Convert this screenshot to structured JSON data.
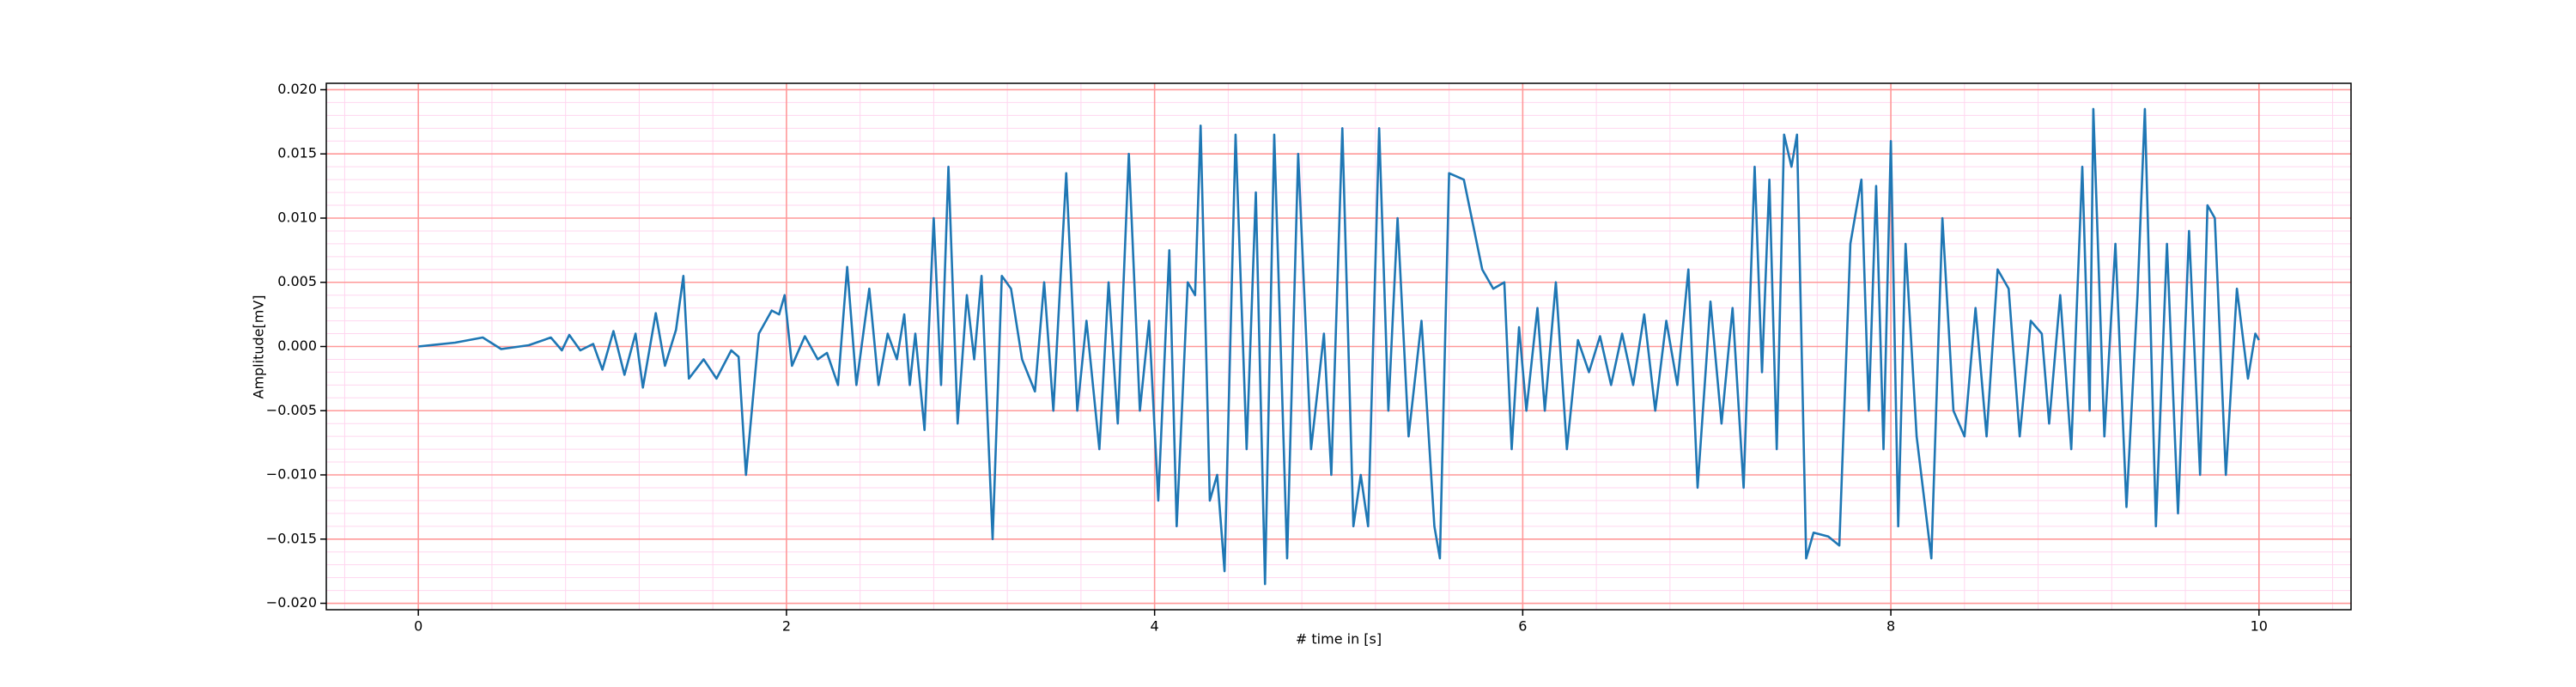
{
  "chart_data": {
    "type": "line",
    "xlabel": "# time in [s]",
    "ylabel": "Amplitude[mV]",
    "x": [
      0,
      0.2,
      0.35,
      0.45,
      0.6,
      0.72,
      0.78,
      0.82,
      0.88,
      0.95,
      1.0,
      1.06,
      1.12,
      1.18,
      1.22,
      1.29,
      1.34,
      1.4,
      1.44,
      1.47,
      1.55,
      1.62,
      1.7,
      1.74,
      1.78,
      1.85,
      1.92,
      1.96,
      1.99,
      2.03,
      2.1,
      2.17,
      2.22,
      2.28,
      2.33,
      2.38,
      2.45,
      2.5,
      2.55,
      2.6,
      2.64,
      2.67,
      2.7,
      2.75,
      2.8,
      2.84,
      2.88,
      2.93,
      2.98,
      3.02,
      3.06,
      3.12,
      3.17,
      3.22,
      3.28,
      3.35,
      3.4,
      3.45,
      3.52,
      3.58,
      3.63,
      3.7,
      3.75,
      3.8,
      3.86,
      3.92,
      3.97,
      4.02,
      4.08,
      4.12,
      4.18,
      4.22,
      4.25,
      4.3,
      4.34,
      4.38,
      4.44,
      4.5,
      4.55,
      4.6,
      4.65,
      4.72,
      4.78,
      4.85,
      4.92,
      4.96,
      5.02,
      5.08,
      5.12,
      5.16,
      5.22,
      5.27,
      5.32,
      5.38,
      5.45,
      5.52,
      5.55,
      5.6,
      5.68,
      5.78,
      5.84,
      5.9,
      5.94,
      5.98,
      6.02,
      6.08,
      6.12,
      6.18,
      6.24,
      6.3,
      6.36,
      6.42,
      6.48,
      6.54,
      6.6,
      6.66,
      6.72,
      6.78,
      6.84,
      6.9,
      6.95,
      7.02,
      7.08,
      7.14,
      7.2,
      7.26,
      7.3,
      7.34,
      7.38,
      7.42,
      7.46,
      7.49,
      7.54,
      7.58,
      7.66,
      7.72,
      7.78,
      7.84,
      7.88,
      7.92,
      7.96,
      8.0,
      8.04,
      8.08,
      8.14,
      8.22,
      8.28,
      8.34,
      8.4,
      8.46,
      8.52,
      8.58,
      8.64,
      8.7,
      8.76,
      8.82,
      8.86,
      8.92,
      8.98,
      9.04,
      9.08,
      9.1,
      9.16,
      9.22,
      9.28,
      9.34,
      9.38,
      9.44,
      9.5,
      9.56,
      9.62,
      9.68,
      9.72,
      9.76,
      9.82,
      9.88,
      9.94,
      9.98,
      10.0
    ],
    "series": [
      {
        "name": "Amplitude",
        "color": "#1f77b4",
        "values": [
          0,
          0.0003,
          0.0007,
          -0.0002,
          0.0001,
          0.0007,
          -0.0003,
          0.0009,
          -0.0003,
          0.0002,
          -0.0018,
          0.0012,
          -0.0022,
          0.001,
          -0.0032,
          0.0026,
          -0.0015,
          0.0013,
          0.0055,
          -0.0025,
          -0.001,
          -0.0025,
          -0.0003,
          -0.0008,
          -0.01,
          0.001,
          0.0028,
          0.0025,
          0.004,
          -0.0015,
          0.0008,
          -0.001,
          -0.0005,
          -0.003,
          0.0062,
          -0.003,
          0.0045,
          -0.003,
          0.001,
          -0.001,
          0.0025,
          -0.003,
          0.001,
          -0.0065,
          0.01,
          -0.003,
          0.014,
          -0.006,
          0.004,
          -0.001,
          0.0055,
          -0.015,
          0.0055,
          0.0045,
          -0.001,
          -0.0035,
          0.005,
          -0.005,
          0.0135,
          -0.005,
          0.002,
          -0.008,
          0.005,
          -0.006,
          0.015,
          -0.005,
          0.002,
          -0.012,
          0.0075,
          -0.014,
          0.005,
          0.004,
          0.0172,
          -0.012,
          -0.01,
          -0.0175,
          0.0165,
          -0.008,
          0.012,
          -0.0185,
          0.0165,
          -0.0165,
          0.015,
          -0.008,
          0.001,
          -0.01,
          0.017,
          -0.014,
          -0.01,
          -0.014,
          0.017,
          -0.005,
          0.01,
          -0.007,
          0.002,
          -0.014,
          -0.0165,
          0.0135,
          0.013,
          0.006,
          0.0045,
          0.005,
          -0.008,
          0.0015,
          -0.005,
          0.003,
          -0.005,
          0.005,
          -0.008,
          0.0005,
          -0.002,
          0.0008,
          -0.003,
          0.001,
          -0.003,
          0.0025,
          -0.005,
          0.002,
          -0.003,
          0.006,
          -0.011,
          0.0035,
          -0.006,
          0.003,
          -0.011,
          0.014,
          -0.002,
          0.013,
          -0.008,
          0.0165,
          0.014,
          0.0165,
          -0.0165,
          -0.0145,
          -0.0148,
          -0.0155,
          0.008,
          0.013,
          -0.005,
          0.0125,
          -0.008,
          0.016,
          -0.014,
          0.008,
          -0.007,
          -0.0165,
          0.01,
          -0.005,
          -0.007,
          0.003,
          -0.007,
          0.006,
          0.0045,
          -0.007,
          0.002,
          0.001,
          -0.006,
          0.004,
          -0.008,
          0.014,
          -0.005,
          0.0185,
          -0.007,
          0.008,
          -0.0125,
          0.004,
          0.0185,
          -0.014,
          0.008,
          -0.013,
          0.009,
          -0.01,
          0.011,
          0.01,
          -0.01,
          0.0045,
          -0.0025,
          0.001,
          0.0005
        ]
      }
    ],
    "xlim": [
      -0.5,
      10.5
    ],
    "ylim": [
      -0.0205,
      0.0205
    ],
    "xticks": [
      0,
      2,
      4,
      6,
      8,
      10
    ],
    "yticks": [
      {
        "value": -0.02,
        "label": "−0.020"
      },
      {
        "value": -0.015,
        "label": "−0.015"
      },
      {
        "value": -0.01,
        "label": "−0.010"
      },
      {
        "value": -0.005,
        "label": "−0.005"
      },
      {
        "value": 0,
        "label": "0.000"
      },
      {
        "value": 0.005,
        "label": "0.005"
      },
      {
        "value": 0.01,
        "label": "0.010"
      },
      {
        "value": 0.015,
        "label": "0.015"
      },
      {
        "value": 0.02,
        "label": "0.020"
      }
    ],
    "grid": true,
    "grid_color": "#ff9999",
    "minor_grid": true,
    "minor_grid_color": "#ffd6ef"
  }
}
